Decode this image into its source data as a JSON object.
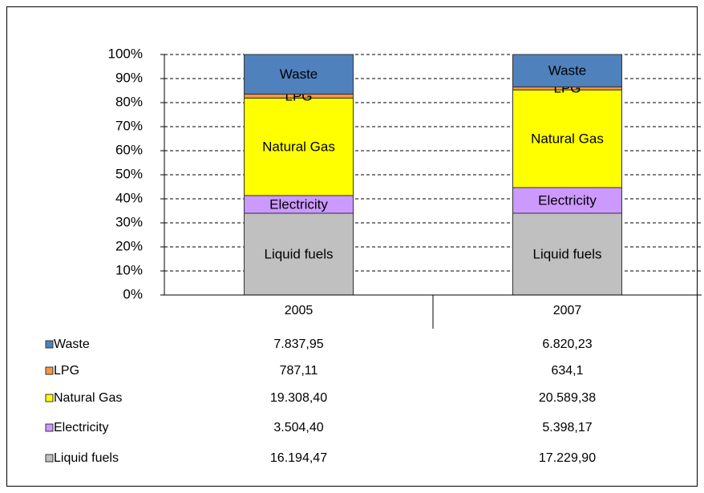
{
  "chart_data": {
    "type": "bar",
    "stacking": "percent",
    "categories": [
      "2005",
      "2007"
    ],
    "series": [
      {
        "name": "Liquid fuels",
        "color": "#c0c0c0",
        "values": [
          16194.47,
          17229.9
        ],
        "value_labels": [
          "16.194,47",
          "17.229,90"
        ]
      },
      {
        "name": "Electricity",
        "color": "#cc99ff",
        "values": [
          3504.4,
          5398.17
        ],
        "value_labels": [
          "3.504,40",
          "5.398,17"
        ]
      },
      {
        "name": "Natural Gas",
        "color": "#ffff00",
        "values": [
          19308.4,
          20589.38
        ],
        "value_labels": [
          "19.308,40",
          "20.589,38"
        ]
      },
      {
        "name": "LPG",
        "color": "#f79646",
        "values": [
          787.11,
          634.1
        ],
        "value_labels": [
          "787,11",
          "634,1"
        ]
      },
      {
        "name": "Waste",
        "color": "#4f81bd",
        "values": [
          7837.95,
          6820.23
        ],
        "value_labels": [
          "7.837,95",
          "6.820,23"
        ]
      }
    ],
    "ylim": [
      0,
      100
    ],
    "yticks": [
      {
        "value": 0,
        "label": "0%"
      },
      {
        "value": 10,
        "label": "10%"
      },
      {
        "value": 20,
        "label": "20%"
      },
      {
        "value": 30,
        "label": "30%"
      },
      {
        "value": 40,
        "label": "40%"
      },
      {
        "value": 50,
        "label": "50%"
      },
      {
        "value": 60,
        "label": "60%"
      },
      {
        "value": 70,
        "label": "70%"
      },
      {
        "value": 80,
        "label": "80%"
      },
      {
        "value": 90,
        "label": "90%"
      },
      {
        "value": 100,
        "label": "100%"
      }
    ],
    "grid": true,
    "segment_labels": true,
    "data_table": true
  }
}
